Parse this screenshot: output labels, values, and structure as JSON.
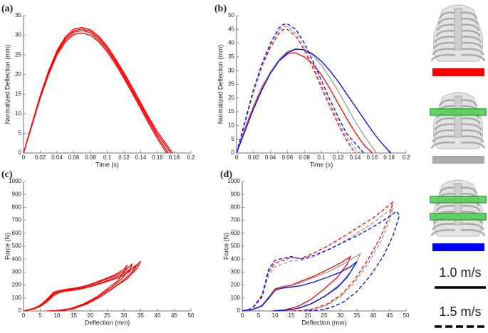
{
  "chart_data": [
    {
      "type": "line",
      "panel": "(a)",
      "x_label": "Time (s)",
      "y_label": "Normalized Deflection (mm)",
      "xlim": [
        0,
        0.2
      ],
      "xticks": [
        0,
        0.02,
        0.04,
        0.06,
        0.08,
        0.1,
        0.12,
        0.14,
        0.16,
        0.18,
        0.2
      ],
      "ylim": [
        0,
        35
      ],
      "yticks": [
        0,
        5,
        10,
        15,
        20,
        25,
        30,
        35
      ],
      "series": [
        {
          "color": "#ff0000",
          "dash": false,
          "x": [
            0,
            0.01,
            0.02,
            0.03,
            0.04,
            0.05,
            0.06,
            0.07,
            0.08,
            0.09,
            0.1,
            0.11,
            0.12,
            0.13,
            0.14,
            0.15,
            0.16,
            0.171
          ],
          "values": [
            0,
            7,
            14,
            20,
            25,
            28.3,
            30.2,
            30.6,
            30,
            28.3,
            25.8,
            22.6,
            19,
            15.2,
            11.3,
            7.4,
            3.6,
            0
          ]
        },
        {
          "color": "#ff0000",
          "dash": false,
          "x": [
            0,
            0.01,
            0.02,
            0.03,
            0.04,
            0.05,
            0.06,
            0.07,
            0.08,
            0.09,
            0.1,
            0.11,
            0.12,
            0.13,
            0.14,
            0.15,
            0.16,
            0.173
          ],
          "values": [
            0,
            7.2,
            14.3,
            20.4,
            25.5,
            28.8,
            30.8,
            31.2,
            30.6,
            28.8,
            26.3,
            23.1,
            19.5,
            15.7,
            11.8,
            8,
            4.2,
            0
          ]
        },
        {
          "color": "#ff0000",
          "dash": false,
          "x": [
            0,
            0.01,
            0.02,
            0.03,
            0.04,
            0.05,
            0.06,
            0.07,
            0.08,
            0.09,
            0.1,
            0.11,
            0.12,
            0.13,
            0.14,
            0.15,
            0.16,
            0.176
          ],
          "values": [
            0,
            7.3,
            14.5,
            20.7,
            25.8,
            29.2,
            31.2,
            31.6,
            31,
            29.3,
            26.8,
            23.6,
            20,
            16.2,
            12.3,
            8.5,
            4.8,
            0
          ]
        },
        {
          "color": "#ff0000",
          "dash": false,
          "x": [
            0,
            0.01,
            0.02,
            0.03,
            0.04,
            0.05,
            0.06,
            0.07,
            0.08,
            0.09,
            0.1,
            0.11,
            0.12,
            0.13,
            0.14,
            0.15,
            0.16,
            0.178
          ],
          "values": [
            0,
            7.4,
            14.7,
            21,
            26.1,
            29.6,
            31.6,
            32,
            31.4,
            29.7,
            27.2,
            24,
            20.5,
            16.7,
            12.8,
            9,
            5.4,
            0
          ]
        }
      ]
    },
    {
      "type": "line",
      "panel": "(b)",
      "x_label": "Time (s)",
      "y_label": "Normalized Deflection (mm)",
      "xlim": [
        0,
        0.2
      ],
      "xticks": [
        0,
        0.02,
        0.04,
        0.06,
        0.08,
        0.1,
        0.12,
        0.14,
        0.16,
        0.18,
        0.2
      ],
      "ylim": [
        0,
        50
      ],
      "yticks": [
        0,
        5,
        10,
        15,
        20,
        25,
        30,
        35,
        40,
        45,
        50
      ],
      "series": [
        {
          "color": "#ff0000",
          "dash": false,
          "x": [
            0,
            0.01,
            0.02,
            0.03,
            0.04,
            0.05,
            0.06,
            0.065,
            0.07,
            0.08,
            0.09,
            0.1,
            0.11,
            0.12,
            0.13,
            0.14,
            0.15,
            0.16
          ],
          "values": [
            0,
            9,
            17,
            24,
            29.5,
            33.5,
            36,
            36.5,
            36.4,
            35,
            32.5,
            28.5,
            23.5,
            18,
            12.5,
            7.5,
            3,
            0
          ]
        },
        {
          "color": "#999999",
          "dash": false,
          "x": [
            0,
            0.01,
            0.02,
            0.03,
            0.04,
            0.05,
            0.06,
            0.07,
            0.08,
            0.09,
            0.1,
            0.11,
            0.12,
            0.13,
            0.14,
            0.15,
            0.165
          ],
          "values": [
            0,
            8.5,
            16.5,
            23.5,
            29.5,
            34,
            37,
            38,
            37.5,
            35.5,
            32,
            27.5,
            22.5,
            17,
            11.5,
            6.5,
            0
          ]
        },
        {
          "color": "#0000ff",
          "dash": false,
          "x": [
            0,
            0.01,
            0.02,
            0.03,
            0.04,
            0.05,
            0.06,
            0.07,
            0.08,
            0.09,
            0.1,
            0.11,
            0.12,
            0.13,
            0.14,
            0.15,
            0.16,
            0.17,
            0.182
          ],
          "values": [
            0,
            8,
            16,
            23,
            29,
            33.5,
            36.5,
            37.8,
            37.6,
            36,
            33.5,
            30,
            26,
            21.5,
            17,
            12.5,
            8,
            4,
            0
          ]
        },
        {
          "color": "#ff0000",
          "dash": true,
          "x": [
            0,
            0.01,
            0.02,
            0.03,
            0.04,
            0.05,
            0.055,
            0.06,
            0.07,
            0.08,
            0.09,
            0.1,
            0.11,
            0.12,
            0.13,
            0.14
          ],
          "values": [
            0,
            11,
            22,
            31.5,
            38.5,
            43.5,
            45,
            45,
            42.5,
            37.5,
            31,
            24,
            17,
            10.5,
            4.5,
            0
          ]
        },
        {
          "color": "#999999",
          "dash": true,
          "x": [
            0,
            0.01,
            0.02,
            0.03,
            0.04,
            0.05,
            0.055,
            0.06,
            0.07,
            0.08,
            0.09,
            0.1,
            0.11,
            0.12,
            0.13,
            0.145
          ],
          "values": [
            0,
            11,
            22,
            32,
            39.5,
            44.5,
            46,
            46,
            43.5,
            38.5,
            32,
            25,
            18,
            11.5,
            5.5,
            0
          ]
        },
        {
          "color": "#0000ff",
          "dash": true,
          "x": [
            0,
            0.01,
            0.02,
            0.03,
            0.04,
            0.05,
            0.055,
            0.06,
            0.07,
            0.08,
            0.09,
            0.1,
            0.11,
            0.12,
            0.13,
            0.15
          ],
          "values": [
            0,
            11.5,
            23,
            32.5,
            40,
            45.5,
            46.8,
            47,
            45,
            40,
            33.5,
            26.5,
            19.5,
            13,
            7,
            0
          ]
        }
      ]
    },
    {
      "type": "line",
      "panel": "(c)",
      "x_label": "Deflection (mm)",
      "y_label": "Force (N)",
      "xlim": [
        0,
        50
      ],
      "xticks": [
        0,
        5,
        10,
        15,
        20,
        25,
        30,
        35,
        40,
        45,
        50
      ],
      "ylim": [
        0,
        1000
      ],
      "yticks": [
        0,
        100,
        200,
        300,
        400,
        500,
        600,
        700,
        800,
        900,
        1000
      ],
      "series": [
        {
          "color": "#ff0000",
          "dash": false,
          "x": [
            0,
            3,
            5,
            7,
            9,
            11,
            13,
            15,
            18,
            21,
            24,
            27,
            30,
            31,
            30,
            28,
            25,
            22,
            18,
            14,
            10,
            7
          ],
          "values": [
            0,
            20,
            45,
            90,
            145,
            160,
            168,
            175,
            190,
            215,
            245,
            275,
            320,
            355,
            300,
            230,
            170,
            110,
            55,
            18,
            3,
            0
          ]
        },
        {
          "color": "#ff0000",
          "dash": false,
          "x": [
            0,
            3,
            5,
            7,
            9,
            11,
            13,
            15,
            18,
            21,
            24,
            27,
            30,
            32.5,
            31.5,
            29,
            26,
            22,
            18,
            14,
            11,
            8
          ],
          "values": [
            0,
            18,
            40,
            85,
            140,
            158,
            165,
            172,
            188,
            210,
            238,
            268,
            305,
            365,
            310,
            240,
            175,
            105,
            50,
            15,
            3,
            0
          ]
        },
        {
          "color": "#ff0000",
          "dash": false,
          "x": [
            0,
            3,
            5,
            7,
            9,
            11,
            13,
            15,
            18,
            21,
            24,
            27,
            30,
            34,
            33,
            30,
            27,
            23,
            19,
            15,
            12,
            9
          ],
          "values": [
            0,
            15,
            35,
            75,
            130,
            150,
            158,
            165,
            180,
            200,
            225,
            255,
            290,
            360,
            315,
            240,
            180,
            110,
            55,
            18,
            4,
            0
          ]
        },
        {
          "color": "#ff0000",
          "dash": false,
          "x": [
            0,
            3,
            5,
            7,
            9,
            11,
            13,
            15,
            18,
            21,
            24,
            27,
            30,
            33,
            35,
            34,
            31,
            27,
            23,
            19,
            15,
            12,
            8
          ],
          "values": [
            0,
            15,
            35,
            70,
            120,
            145,
            155,
            160,
            175,
            195,
            220,
            245,
            275,
            330,
            385,
            330,
            250,
            180,
            110,
            55,
            20,
            5,
            0
          ]
        }
      ]
    },
    {
      "type": "line",
      "panel": "(d)",
      "x_label": "Deflection (mm)",
      "y_label": "Force (N)",
      "xlim": [
        0,
        50
      ],
      "xticks": [
        0,
        5,
        10,
        15,
        20,
        25,
        30,
        35,
        40,
        45,
        50
      ],
      "ylim": [
        0,
        1000
      ],
      "yticks": [
        0,
        100,
        200,
        300,
        400,
        500,
        600,
        700,
        800,
        900,
        1000
      ],
      "series": [
        {
          "color": "#ff0000",
          "dash": false,
          "x": [
            0,
            3,
            6,
            8,
            10,
            12,
            15,
            18,
            22,
            26,
            30,
            33,
            32,
            29,
            25,
            21,
            17,
            13,
            9
          ],
          "values": [
            0,
            10,
            40,
            100,
            170,
            185,
            200,
            230,
            270,
            320,
            370,
            420,
            360,
            260,
            170,
            90,
            35,
            8,
            0
          ]
        },
        {
          "color": "#999999",
          "dash": false,
          "x": [
            0,
            3,
            6,
            8,
            10,
            12,
            15,
            18,
            22,
            26,
            30,
            34,
            36,
            35,
            33,
            30,
            26,
            22,
            18,
            14,
            10
          ],
          "values": [
            0,
            8,
            35,
            90,
            160,
            180,
            195,
            220,
            260,
            300,
            350,
            410,
            440,
            380,
            300,
            210,
            130,
            65,
            25,
            5,
            0
          ]
        },
        {
          "color": "#0000ff",
          "dash": false,
          "x": [
            0,
            3,
            6,
            8,
            10,
            12,
            15,
            18,
            22,
            26,
            30,
            33,
            35,
            34,
            32,
            29,
            25,
            21,
            17,
            13,
            10
          ],
          "values": [
            0,
            10,
            40,
            100,
            160,
            175,
            185,
            195,
            225,
            260,
            300,
            340,
            380,
            340,
            260,
            180,
            110,
            55,
            20,
            5,
            0
          ]
        },
        {
          "color": "#ff0000",
          "dash": true,
          "x": [
            0,
            3,
            6,
            8,
            10,
            13,
            15,
            18,
            22,
            26,
            30,
            35,
            40,
            44,
            46,
            45,
            42,
            38,
            34,
            30,
            26,
            22,
            18,
            15
          ],
          "values": [
            0,
            20,
            120,
            300,
            370,
            395,
            415,
            405,
            450,
            500,
            560,
            640,
            720,
            800,
            840,
            740,
            560,
            380,
            230,
            120,
            55,
            18,
            3,
            0
          ]
        },
        {
          "color": "#999999",
          "dash": true,
          "x": [
            0,
            3,
            6,
            8,
            10,
            13,
            15,
            18,
            22,
            26,
            30,
            35,
            40,
            44,
            46,
            45,
            42,
            38,
            34,
            30,
            26,
            22,
            18
          ],
          "values": [
            0,
            15,
            100,
            270,
            340,
            370,
            385,
            390,
            420,
            470,
            520,
            600,
            680,
            760,
            800,
            700,
            520,
            350,
            210,
            110,
            45,
            12,
            0
          ]
        },
        {
          "color": "#0000ff",
          "dash": true,
          "x": [
            0,
            3,
            6,
            8,
            10,
            13,
            15,
            18,
            22,
            26,
            30,
            35,
            40,
            45,
            47,
            48,
            46,
            43,
            39,
            35,
            31,
            27,
            23,
            19
          ],
          "values": [
            0,
            20,
            110,
            320,
            390,
            410,
            420,
            400,
            430,
            470,
            520,
            580,
            650,
            730,
            770,
            740,
            580,
            420,
            270,
            150,
            70,
            25,
            5,
            0
          ]
        }
      ]
    }
  ],
  "legend": {
    "conditions": [
      {
        "color": "#ff0000",
        "bands": 0
      },
      {
        "color": "#aaaaaa",
        "bands": 1
      },
      {
        "color": "#0000ff",
        "bands": 2
      }
    ],
    "speeds": [
      {
        "label": "1.0 m/s",
        "dash": false
      },
      {
        "label": "1.5 m/s",
        "dash": true
      }
    ]
  }
}
